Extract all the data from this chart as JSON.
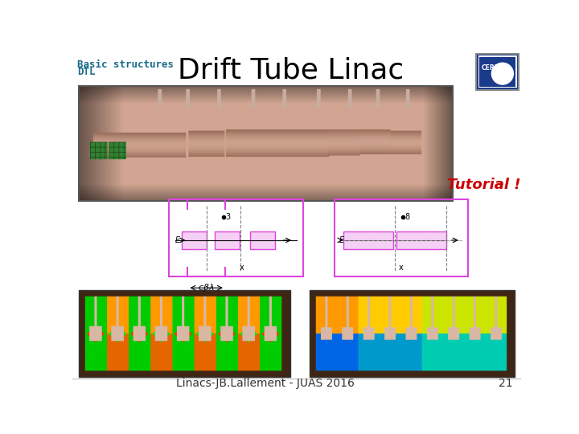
{
  "title": "Drift Tube Linac",
  "subtitle_line1": "Basic structures",
  "subtitle_line2": "DTL",
  "tutorial_text": "Tutorial !",
  "footer_text": "Linacs-JB.Lallement - JUAS 2016",
  "footer_number": "21",
  "title_fontsize": 26,
  "subtitle_fontsize": 9,
  "tutorial_fontsize": 13,
  "footer_fontsize": 10,
  "subtitle_color": "#1a6b8a",
  "title_color": "#000000",
  "tutorial_color": "#cc0000",
  "footer_color": "#333333",
  "bg_color": "#ffffff",
  "schema_border": "#dd44dd",
  "schema_fill": "#ffffff",
  "schema_pink": "#f0a0f0",
  "cern_logo_bg": "#1a3a7a"
}
